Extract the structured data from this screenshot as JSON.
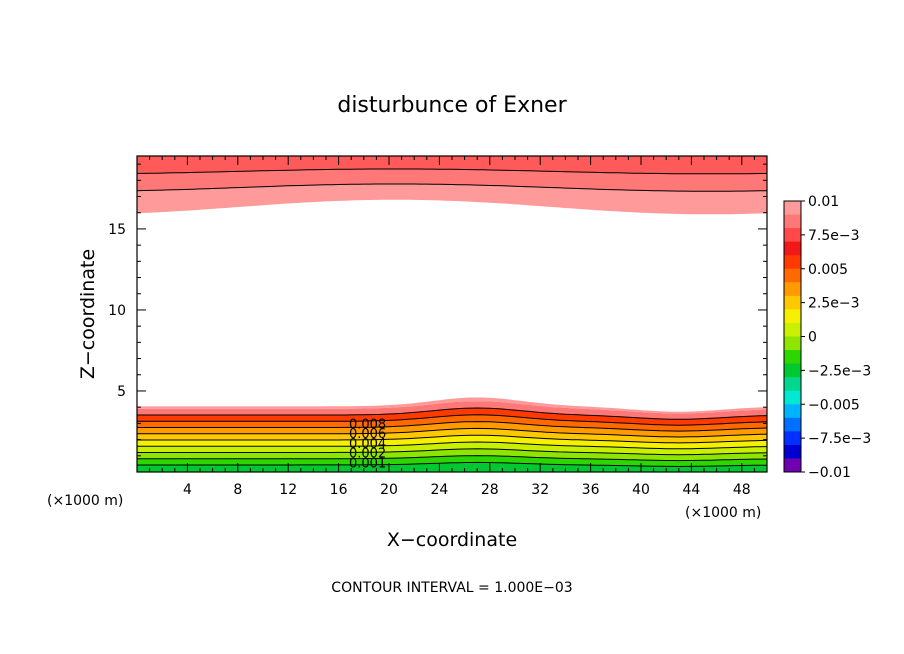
{
  "chart_data": {
    "type": "contour",
    "title": "disturbunce of Exner",
    "xlabel": "X−coordinate",
    "ylabel": "Z−coordinate",
    "x_unit_label": "(×1000 m)",
    "x_unit_label_right": "(×1000 m)",
    "xlim": [
      0,
      50
    ],
    "ylim": [
      0,
      19.5
    ],
    "x_ticks": [
      4,
      8,
      12,
      16,
      20,
      24,
      28,
      32,
      36,
      40,
      44,
      48
    ],
    "y_ticks": [
      5,
      10,
      15
    ],
    "footer": "CONTOUR INTERVAL = 1.000E−03",
    "contour_interval": 0.001,
    "contour_labels": [
      "0.008",
      "0.006",
      "0.004",
      "0.002",
      "0.001"
    ],
    "colorbar": {
      "range": [
        -0.01,
        0.01
      ],
      "labels": [
        "0.01",
        "7.5e−3",
        "0.005",
        "2.5e−3",
        "0",
        "−2.5e−3",
        "−0.005",
        "−7.5e−3",
        "−0.01"
      ],
      "colors": [
        "#ff9a9a",
        "#ff7878",
        "#ff4848",
        "#f21818",
        "#ff3a00",
        "#ff6a00",
        "#ff9a00",
        "#ffc800",
        "#f5f000",
        "#c8f000",
        "#8ee600",
        "#2ed600",
        "#00c830",
        "#00d890",
        "#00e8d0",
        "#00b4ff",
        "#0070ff",
        "#0030ff",
        "#0000d0",
        "#7000b0"
      ]
    }
  }
}
